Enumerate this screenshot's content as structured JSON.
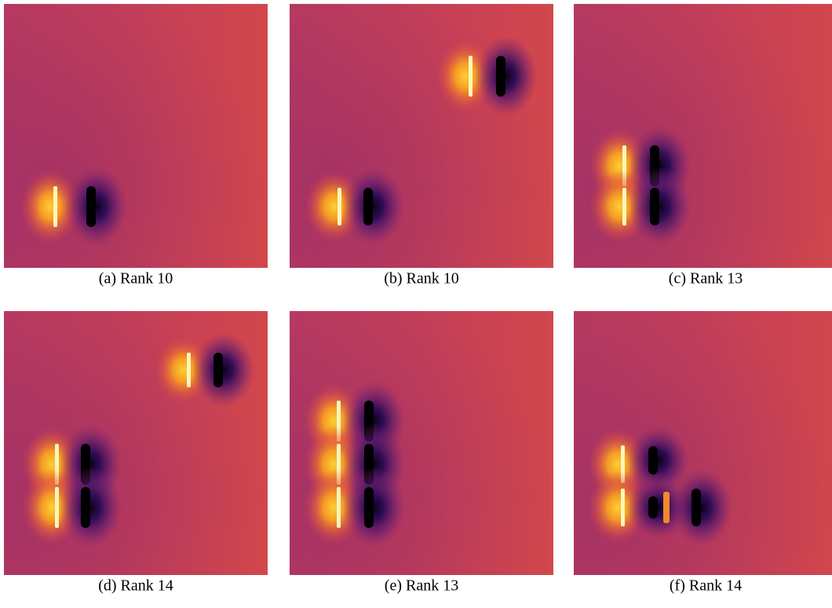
{
  "panels": [
    {
      "caption": "(a) Rank 10"
    },
    {
      "caption": "(b) Rank 10"
    },
    {
      "caption": "(c) Rank 13"
    },
    {
      "caption": "(d) Rank 14"
    },
    {
      "caption": "(e) Rank 13"
    },
    {
      "caption": "(f) Rank 14"
    }
  ]
}
